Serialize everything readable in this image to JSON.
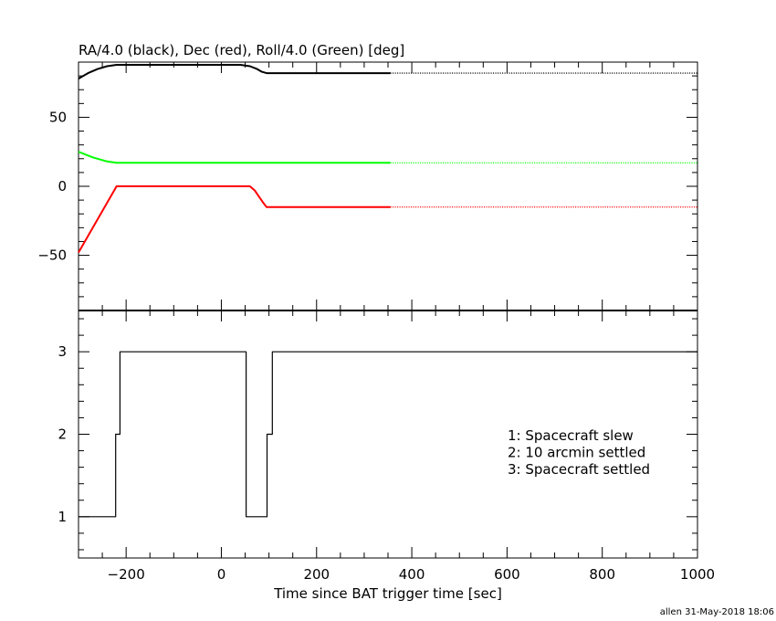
{
  "chart_data": [
    {
      "type": "line",
      "title": "RA/4.0 (black), Dec (red), Roll/4.0 (Green) [deg]",
      "xlim": [
        -300,
        1000
      ],
      "ylim": [
        -90,
        90
      ],
      "yticks": [
        -50,
        0,
        50
      ],
      "grid": false,
      "series": [
        {
          "name": "RA/4.0",
          "color": "#000000",
          "x": [
            -300,
            -280,
            -260,
            -240,
            -220,
            -200,
            40,
            60,
            75,
            85,
            95,
            355
          ],
          "y": [
            78,
            82,
            85,
            87,
            88,
            88,
            88,
            87,
            85,
            83,
            82,
            82
          ],
          "dotted_after": 355,
          "dotted_to": 1000
        },
        {
          "name": "Dec",
          "color": "#ff0000",
          "x": [
            -300,
            -220,
            60,
            70,
            80,
            88,
            95,
            355
          ],
          "y": [
            -48,
            0,
            0,
            -3,
            -8,
            -12,
            -15,
            -15
          ],
          "dotted_after": 355,
          "dotted_to": 1000
        },
        {
          "name": "Roll/4.0",
          "color": "#00ff00",
          "x": [
            -300,
            -270,
            -240,
            -220,
            90,
            355
          ],
          "y": [
            25,
            21,
            18,
            17,
            17,
            17
          ],
          "dotted_after": 355,
          "dotted_to": 1000
        }
      ]
    },
    {
      "type": "line",
      "step": true,
      "xlabel": "Time since BAT trigger time [sec]",
      "xlim": [
        -300,
        1000
      ],
      "xticks": [
        -200,
        0,
        200,
        400,
        600,
        800,
        1000
      ],
      "ylim": [
        0.5,
        3.5
      ],
      "yticks": [
        1,
        2,
        3
      ],
      "grid": false,
      "legend_position": "right",
      "legend": [
        "1: Spacecraft slew",
        "2: 10 arcmin settled",
        "3: Spacecraft settled"
      ],
      "series": [
        {
          "color": "#000000",
          "x": [
            -300,
            -222,
            -222,
            -213,
            -213,
            52,
            52,
            96,
            96,
            107,
            107,
            1000
          ],
          "y": [
            1,
            1,
            2,
            2,
            3,
            3,
            1,
            1,
            2,
            2,
            3,
            3
          ]
        }
      ]
    }
  ],
  "footer": "allen 31-May-2018 18:06"
}
